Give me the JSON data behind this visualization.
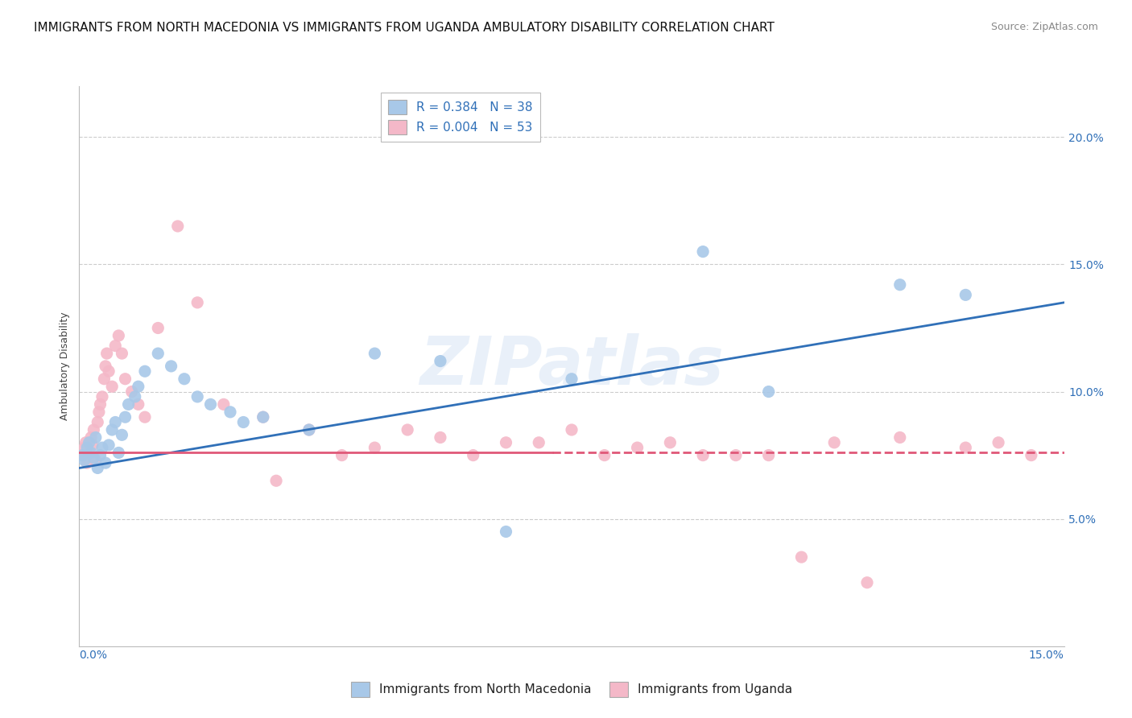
{
  "title": "IMMIGRANTS FROM NORTH MACEDONIA VS IMMIGRANTS FROM UGANDA AMBULATORY DISABILITY CORRELATION CHART",
  "source": "Source: ZipAtlas.com",
  "ylabel": "Ambulatory Disability",
  "watermark": "ZIPatlas",
  "legend_blue_r": "R = 0.384",
  "legend_blue_n": "N = 38",
  "legend_pink_r": "R = 0.004",
  "legend_pink_n": "N = 53",
  "legend_blue_label": "Immigrants from North Macedonia",
  "legend_pink_label": "Immigrants from Uganda",
  "blue_color": "#a8c8e8",
  "pink_color": "#f4b8c8",
  "blue_line_color": "#3070b8",
  "pink_line_color": "#e05878",
  "xlim": [
    0.0,
    15.0
  ],
  "ylim": [
    0.0,
    22.0
  ],
  "yticks": [
    5.0,
    10.0,
    15.0,
    20.0
  ],
  "blue_x": [
    0.05,
    0.08,
    0.12,
    0.15,
    0.18,
    0.22,
    0.25,
    0.28,
    0.32,
    0.35,
    0.4,
    0.45,
    0.5,
    0.55,
    0.6,
    0.65,
    0.7,
    0.75,
    0.85,
    0.9,
    1.0,
    1.2,
    1.4,
    1.6,
    1.8,
    2.0,
    2.3,
    2.8,
    3.5,
    4.5,
    5.5,
    7.5,
    9.5,
    10.5,
    12.5,
    13.5,
    2.5,
    6.5
  ],
  "blue_y": [
    7.5,
    7.3,
    7.8,
    8.0,
    7.6,
    7.4,
    8.2,
    7.0,
    7.5,
    7.8,
    7.2,
    7.9,
    8.5,
    8.8,
    7.6,
    8.3,
    9.0,
    9.5,
    9.8,
    10.2,
    10.8,
    11.5,
    11.0,
    10.5,
    9.8,
    9.5,
    9.2,
    9.0,
    8.5,
    11.5,
    11.2,
    10.5,
    15.5,
    10.0,
    14.2,
    13.8,
    8.8,
    4.5
  ],
  "pink_x": [
    0.05,
    0.08,
    0.1,
    0.12,
    0.15,
    0.18,
    0.2,
    0.22,
    0.25,
    0.28,
    0.3,
    0.32,
    0.35,
    0.38,
    0.4,
    0.42,
    0.45,
    0.5,
    0.55,
    0.6,
    0.65,
    0.7,
    0.8,
    0.9,
    1.0,
    1.2,
    1.5,
    1.8,
    2.2,
    2.8,
    3.5,
    4.5,
    5.5,
    6.0,
    6.5,
    7.5,
    8.5,
    9.5,
    10.5,
    11.5,
    12.5,
    13.5,
    14.0,
    14.5,
    3.0,
    4.0,
    5.0,
    7.0,
    8.0,
    9.0,
    10.0,
    11.0,
    12.0
  ],
  "pink_y": [
    7.5,
    7.8,
    8.0,
    7.2,
    7.6,
    8.2,
    7.9,
    8.5,
    7.3,
    8.8,
    9.2,
    9.5,
    9.8,
    10.5,
    11.0,
    11.5,
    10.8,
    10.2,
    11.8,
    12.2,
    11.5,
    10.5,
    10.0,
    9.5,
    9.0,
    12.5,
    16.5,
    13.5,
    9.5,
    9.0,
    8.5,
    7.8,
    8.2,
    7.5,
    8.0,
    8.5,
    7.8,
    7.5,
    7.5,
    8.0,
    8.2,
    7.8,
    8.0,
    7.5,
    6.5,
    7.5,
    8.5,
    8.0,
    7.5,
    8.0,
    7.5,
    3.5,
    2.5
  ],
  "title_fontsize": 11,
  "source_fontsize": 9,
  "axis_label_fontsize": 9,
  "tick_fontsize": 10,
  "legend_fontsize": 11,
  "background_color": "#ffffff",
  "grid_color": "#cccccc"
}
